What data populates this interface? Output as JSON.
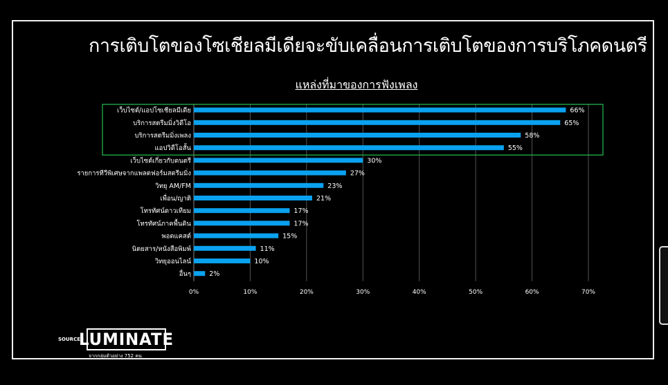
{
  "title": "การเติบโตของโซเชียลมีเดียจะขับเคลื่อนการเติบโตของการบริโภคดนตรี",
  "source": {
    "label": "SOURCE :",
    "logo_text": "LUMINATE",
    "note": "จากกลุ่มตัวอย่าง 752 คน"
  },
  "chart_data": {
    "type": "bar",
    "orientation": "horizontal",
    "title": "แหล่งที่มาของการฟังเพลง",
    "categories": [
      "เว็บไซต์/แอปโซเชียลมีเดีย",
      "บริการสตรีมมิ่งวิดีโอ",
      "บริการสตรีมมิ่งเพลง",
      "แอปวิดีโอสั้น",
      "เว็บไซต์เกี่ยวกับดนตรี",
      "รายการทีวีพิเศษจากแพลตฟอร์มสตรีมมิ่ง",
      "วิทยุ AM/FM",
      "เพื่อน/ญาติ",
      "โทรทัศน์ดาวเทียม",
      "โทรทัศน์ภาคพื้นดิน",
      "พอดแคสต์",
      "นิตยสาร/หนังสือพิมพ์",
      "วิทยุออนไลน์",
      "อื่นๆ"
    ],
    "values": [
      66,
      65,
      58,
      55,
      30,
      27,
      23,
      21,
      17,
      17,
      15,
      11,
      10,
      2
    ],
    "value_labels": [
      "66%",
      "65%",
      "58%",
      "55%",
      "30%",
      "27%",
      "23%",
      "21%",
      "17%",
      "17%",
      "15%",
      "11%",
      "10%",
      "2%"
    ],
    "xlim": [
      0,
      70
    ],
    "xticks": [
      0,
      10,
      20,
      30,
      40,
      50,
      60,
      70
    ],
    "xtick_labels": [
      "0%",
      "10%",
      "20%",
      "30%",
      "40%",
      "50%",
      "60%",
      "70%"
    ],
    "grid": true,
    "highlight_count": 4,
    "colors": {
      "bar": "#0aa2f0",
      "grid": "#555555",
      "highlight": "#22b14c",
      "text": "#ffffff"
    }
  }
}
